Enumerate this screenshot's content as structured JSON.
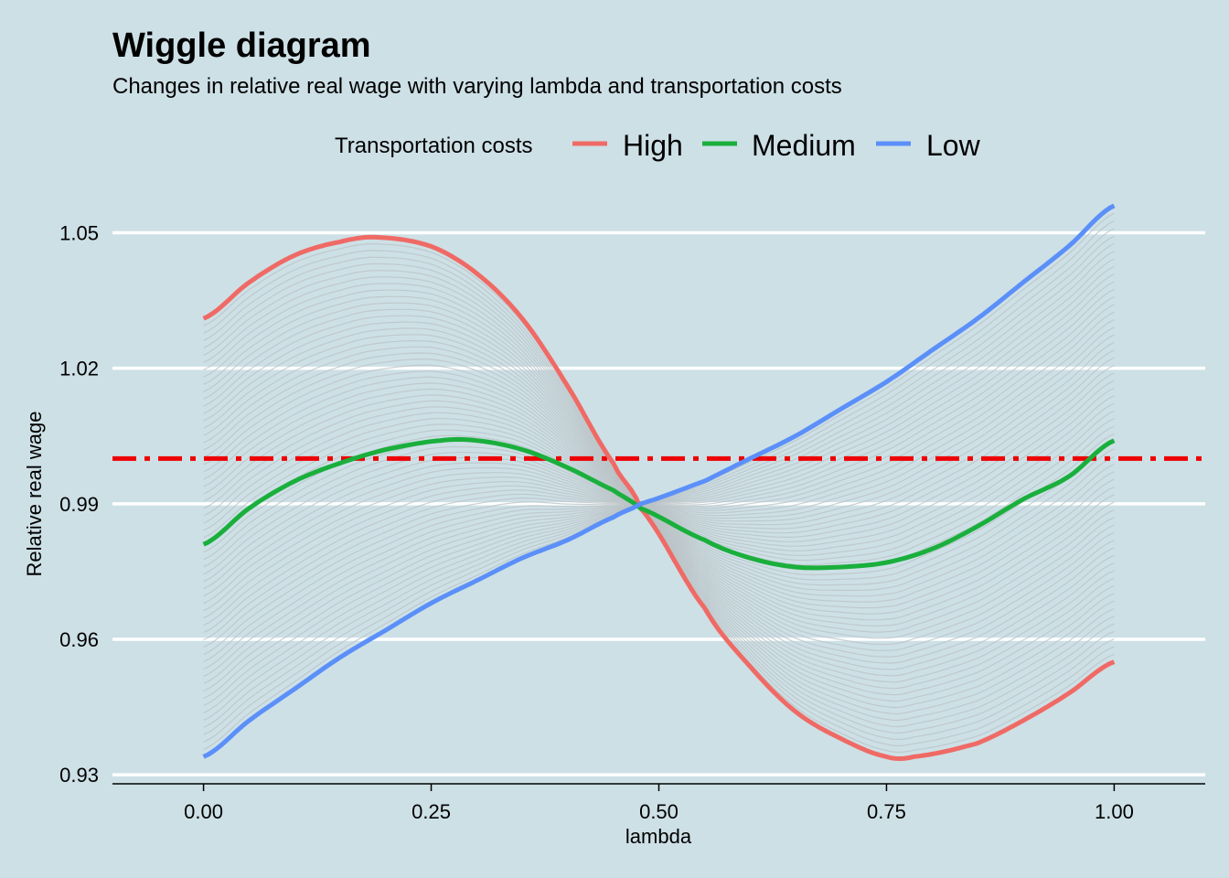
{
  "chart_data": {
    "type": "line",
    "title": "Wiggle diagram",
    "subtitle": "Changes in relative real wage with varying lambda and transportation costs",
    "xlabel": "lambda",
    "ylabel": "Relative real wage",
    "xlim": [
      -0.1,
      1.1
    ],
    "ylim": [
      0.928,
      1.058
    ],
    "x_ticks": [
      0.0,
      0.25,
      0.5,
      0.75,
      1.0
    ],
    "x_tick_labels": [
      "0.00",
      "0.25",
      "0.50",
      "0.75",
      "1.00"
    ],
    "y_ticks": [
      0.93,
      0.96,
      0.99,
      1.02,
      1.05
    ],
    "y_tick_labels": [
      "0.93",
      "0.96",
      "0.99",
      "1.02",
      "1.05"
    ],
    "grid": "horizontal-major",
    "reference_line": {
      "y": 1.0,
      "color": "#ee0000",
      "style": "dash-dot"
    },
    "legend": {
      "title": "Transportation costs",
      "position": "top"
    },
    "background_curves": {
      "count": 60,
      "color": "#b9c1c4"
    },
    "series": [
      {
        "name": "High",
        "color": "#f06a65",
        "x": [
          0.0,
          0.05,
          0.1,
          0.15,
          0.19,
          0.25,
          0.3,
          0.35,
          0.4,
          0.45,
          0.48,
          0.55,
          0.6,
          0.65,
          0.7,
          0.75,
          0.78,
          0.85,
          0.9,
          0.95,
          1.0
        ],
        "y": [
          1.031,
          1.039,
          1.045,
          1.048,
          1.049,
          1.047,
          1.041,
          1.031,
          1.016,
          0.999,
          0.989,
          0.967,
          0.954,
          0.944,
          0.938,
          0.934,
          0.934,
          0.937,
          0.942,
          0.948,
          0.955
        ]
      },
      {
        "name": "Medium",
        "color": "#1aaf3c",
        "x": [
          0.0,
          0.05,
          0.1,
          0.15,
          0.2,
          0.26,
          0.3,
          0.35,
          0.4,
          0.45,
          0.48,
          0.55,
          0.6,
          0.65,
          0.7,
          0.75,
          0.8,
          0.85,
          0.9,
          0.95,
          1.0
        ],
        "y": [
          0.981,
          0.989,
          0.995,
          0.999,
          1.002,
          1.004,
          1.004,
          1.002,
          0.998,
          0.993,
          0.989,
          0.982,
          0.978,
          0.976,
          0.976,
          0.977,
          0.98,
          0.985,
          0.991,
          0.996,
          1.004
        ]
      },
      {
        "name": "Low",
        "color": "#5b8ff9",
        "x": [
          0.0,
          0.05,
          0.1,
          0.15,
          0.2,
          0.25,
          0.3,
          0.35,
          0.4,
          0.45,
          0.48,
          0.55,
          0.6,
          0.65,
          0.7,
          0.75,
          0.8,
          0.85,
          0.9,
          0.95,
          1.0
        ],
        "y": [
          0.934,
          0.942,
          0.949,
          0.956,
          0.962,
          0.968,
          0.973,
          0.978,
          0.982,
          0.987,
          0.99,
          0.995,
          1.0,
          1.005,
          1.011,
          1.017,
          1.024,
          1.031,
          1.039,
          1.047,
          1.056
        ]
      }
    ]
  }
}
